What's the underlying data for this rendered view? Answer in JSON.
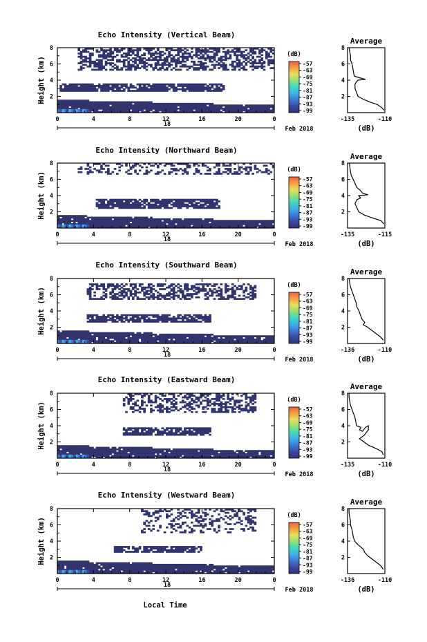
{
  "figure": {
    "date_label": "Feb 2018",
    "xlabel": "Local Time",
    "ylabel": "Height (km)",
    "colorbar_unit": "(dB)",
    "avg_title": "Average",
    "avg_xlabel": "(dB)",
    "x_ticks": [
      "0",
      "4",
      "8",
      "12",
      "16",
      "20",
      "0"
    ],
    "x_day": "18",
    "y_ticks": [
      "2",
      "4",
      "6",
      "8"
    ],
    "colorbar_ticks": [
      "-57",
      "-63",
      "-69",
      "-75",
      "-81",
      "-87",
      "-93",
      "-99"
    ],
    "colorbar_colors": [
      "#30307a",
      "#3a4aa0",
      "#3f78d6",
      "#3fb0e6",
      "#40d8c0",
      "#8ee07a",
      "#e6e060",
      "#f6a040",
      "#f06040"
    ]
  },
  "chart_data": [
    {
      "type": "heatmap",
      "title": "Echo Intensity (Vertical Beam)",
      "xlim": [
        0,
        24
      ],
      "ylim": [
        0,
        8
      ],
      "avg_profile": {
        "xlim": [
          -135,
          -110
        ],
        "xticks": [
          "-135",
          "-110"
        ],
        "points": [
          [
            -134,
            8
          ],
          [
            -133.5,
            7.5
          ],
          [
            -133,
            7
          ],
          [
            -133,
            6.5
          ],
          [
            -132,
            6
          ],
          [
            -131.5,
            5.5
          ],
          [
            -131,
            5
          ],
          [
            -130.5,
            4.5
          ],
          [
            -127,
            4.3
          ],
          [
            -123,
            4.1
          ],
          [
            -128,
            4
          ],
          [
            -129,
            3.8
          ],
          [
            -130,
            3.5
          ],
          [
            -130,
            3
          ],
          [
            -129,
            2.5
          ],
          [
            -128,
            2
          ],
          [
            -125,
            1.7
          ],
          [
            -120,
            1.3
          ],
          [
            -115,
            1
          ],
          [
            -112,
            0.6
          ],
          [
            -110.5,
            0.3
          ]
        ]
      }
    },
    {
      "type": "heatmap",
      "title": "Echo Intensity (Northward Beam)",
      "xlim": [
        0,
        24
      ],
      "ylim": [
        0,
        8
      ],
      "avg_profile": {
        "xlim": [
          -135,
          -115
        ],
        "xticks": [
          "-135",
          "-115"
        ],
        "points": [
          [
            -134,
            8
          ],
          [
            -133.5,
            7
          ],
          [
            -133,
            6.5
          ],
          [
            -132,
            6
          ],
          [
            -131,
            5.5
          ],
          [
            -130,
            5
          ],
          [
            -128,
            4.6
          ],
          [
            -127,
            4.3
          ],
          [
            -124,
            4.1
          ],
          [
            -129,
            4
          ],
          [
            -128,
            3.7
          ],
          [
            -130,
            3.5
          ],
          [
            -131,
            3
          ],
          [
            -130,
            2.5
          ],
          [
            -129,
            2
          ],
          [
            -126,
            1.6
          ],
          [
            -121,
            1.2
          ],
          [
            -117,
            0.9
          ],
          [
            -115.5,
            0.5
          ]
        ]
      }
    },
    {
      "type": "heatmap",
      "title": "Echo Intensity (Southward Beam)",
      "xlim": [
        0,
        24
      ],
      "ylim": [
        0,
        8
      ],
      "avg_profile": {
        "xlim": [
          -136,
          -110
        ],
        "xticks": [
          "-136",
          "-110"
        ],
        "points": [
          [
            -135,
            8
          ],
          [
            -134.5,
            7.5
          ],
          [
            -134,
            7
          ],
          [
            -133,
            6.5
          ],
          [
            -132,
            6
          ],
          [
            -131,
            5.5
          ],
          [
            -130,
            5
          ],
          [
            -129.5,
            4.5
          ],
          [
            -128,
            4
          ],
          [
            -127,
            3.5
          ],
          [
            -126,
            3
          ],
          [
            -124,
            2.6
          ],
          [
            -125,
            2.3
          ],
          [
            -122,
            2
          ],
          [
            -119,
            1.6
          ],
          [
            -116,
            1.2
          ],
          [
            -113,
            0.8
          ],
          [
            -111,
            0.4
          ]
        ]
      }
    },
    {
      "type": "heatmap",
      "title": "Echo Intensity (Eastward Beam)",
      "xlim": [
        0,
        24
      ],
      "ylim": [
        0,
        8
      ],
      "avg_profile": {
        "xlim": [
          -135,
          -110
        ],
        "xticks": [
          "-135",
          "-110"
        ],
        "points": [
          [
            -134,
            8
          ],
          [
            -134,
            7.5
          ],
          [
            -133.5,
            7
          ],
          [
            -133,
            6.5
          ],
          [
            -132,
            6
          ],
          [
            -131,
            5.5
          ],
          [
            -130,
            5
          ],
          [
            -129.5,
            4.5
          ],
          [
            -129,
            4
          ],
          [
            -126,
            3.8
          ],
          [
            -127,
            3.5
          ],
          [
            -125,
            3.3
          ],
          [
            -123,
            3.8
          ],
          [
            -121,
            4
          ],
          [
            -121,
            3.5
          ],
          [
            -124,
            2.8
          ],
          [
            -127,
            2.4
          ],
          [
            -124,
            2
          ],
          [
            -121,
            1.6
          ],
          [
            -116,
            1.2
          ],
          [
            -112,
            0.8
          ],
          [
            -111,
            0.4
          ]
        ]
      }
    },
    {
      "type": "heatmap",
      "title": "Echo Intensity (Westward Beam)",
      "xlim": [
        0,
        24
      ],
      "ylim": [
        0,
        8
      ],
      "avg_profile": {
        "xlim": [
          -136,
          -110
        ],
        "xticks": [
          "-136",
          "-110"
        ],
        "points": [
          [
            -135,
            8
          ],
          [
            -135,
            7.5
          ],
          [
            -134.5,
            7
          ],
          [
            -134,
            6.5
          ],
          [
            -134,
            6
          ],
          [
            -133,
            5.5
          ],
          [
            -132.5,
            5
          ],
          [
            -132,
            4.5
          ],
          [
            -131,
            4
          ],
          [
            -129,
            3.6
          ],
          [
            -127,
            3.3
          ],
          [
            -125,
            3
          ],
          [
            -124,
            2.6
          ],
          [
            -122,
            2.2
          ],
          [
            -119,
            1.8
          ],
          [
            -116,
            1.4
          ],
          [
            -113,
            1
          ],
          [
            -111,
            0.5
          ]
        ]
      }
    }
  ]
}
